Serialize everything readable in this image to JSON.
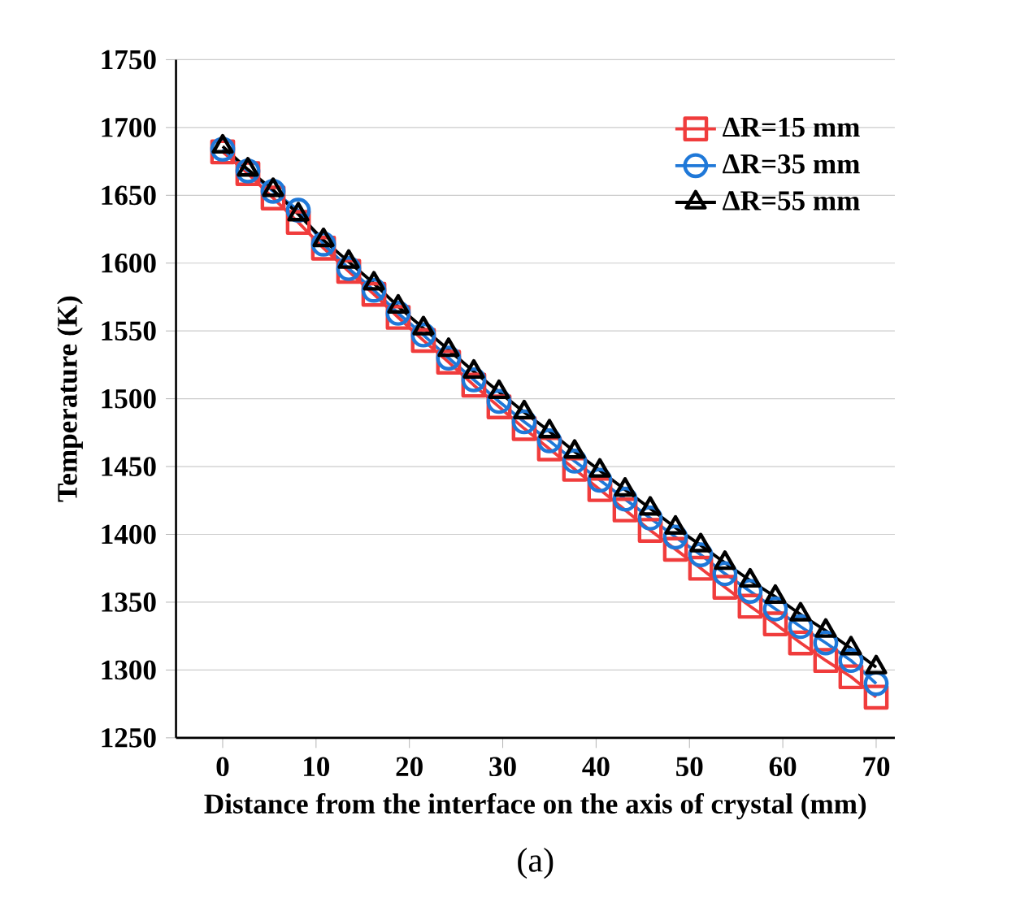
{
  "chart_data": {
    "type": "line",
    "xlabel": "Distance from the interface on the axis of crystal (mm)",
    "ylabel": "Temperature (K)",
    "annotations": [
      "(a)"
    ],
    "x": [
      0,
      2.7,
      5.4,
      8.1,
      10.8,
      13.5,
      16.2,
      18.8,
      21.5,
      24.2,
      26.9,
      29.6,
      32.3,
      35,
      37.7,
      40.4,
      43.1,
      45.8,
      48.5,
      51.2,
      53.8,
      56.5,
      59.2,
      61.9,
      64.6,
      67.3,
      70
    ],
    "xlim": [
      -5,
      72
    ],
    "xticks": [
      0,
      10,
      20,
      30,
      40,
      50,
      60,
      70
    ],
    "ylim": [
      1250,
      1750
    ],
    "yticks": [
      1250,
      1300,
      1350,
      1400,
      1450,
      1500,
      1550,
      1600,
      1650,
      1700,
      1750
    ],
    "grid": "y",
    "legend": "top right",
    "line_style": "solid",
    "series": [
      {
        "name": "ΔR=15 mm",
        "color": "#f03c3c",
        "marker": "square",
        "values": [
          1682,
          1666,
          1648,
          1630,
          1611,
          1594,
          1577,
          1560,
          1543,
          1527,
          1510,
          1494,
          1478,
          1463,
          1448,
          1433,
          1418,
          1403,
          1389,
          1375,
          1361,
          1347,
          1334,
          1320,
          1307,
          1295,
          1280
        ]
      },
      {
        "name": "ΔR=35 mm",
        "color": "#1f78d8",
        "marker": "circle",
        "values": [
          1684,
          1668,
          1653,
          1639,
          1614,
          1596,
          1580,
          1563,
          1547,
          1530,
          1514,
          1498,
          1483,
          1469,
          1454,
          1440,
          1426,
          1412,
          1398,
          1385,
          1371,
          1358,
          1345,
          1332,
          1320,
          1307,
          1290
        ]
      },
      {
        "name": "ΔR=55 mm",
        "color": "#000000",
        "marker": "triangle",
        "values": [
          1686,
          1669,
          1654,
          1636,
          1617,
          1601,
          1585,
          1568,
          1552,
          1536,
          1520,
          1505,
          1490,
          1476,
          1461,
          1447,
          1433,
          1419,
          1405,
          1392,
          1379,
          1366,
          1354,
          1341,
          1329,
          1316,
          1302
        ]
      }
    ]
  }
}
